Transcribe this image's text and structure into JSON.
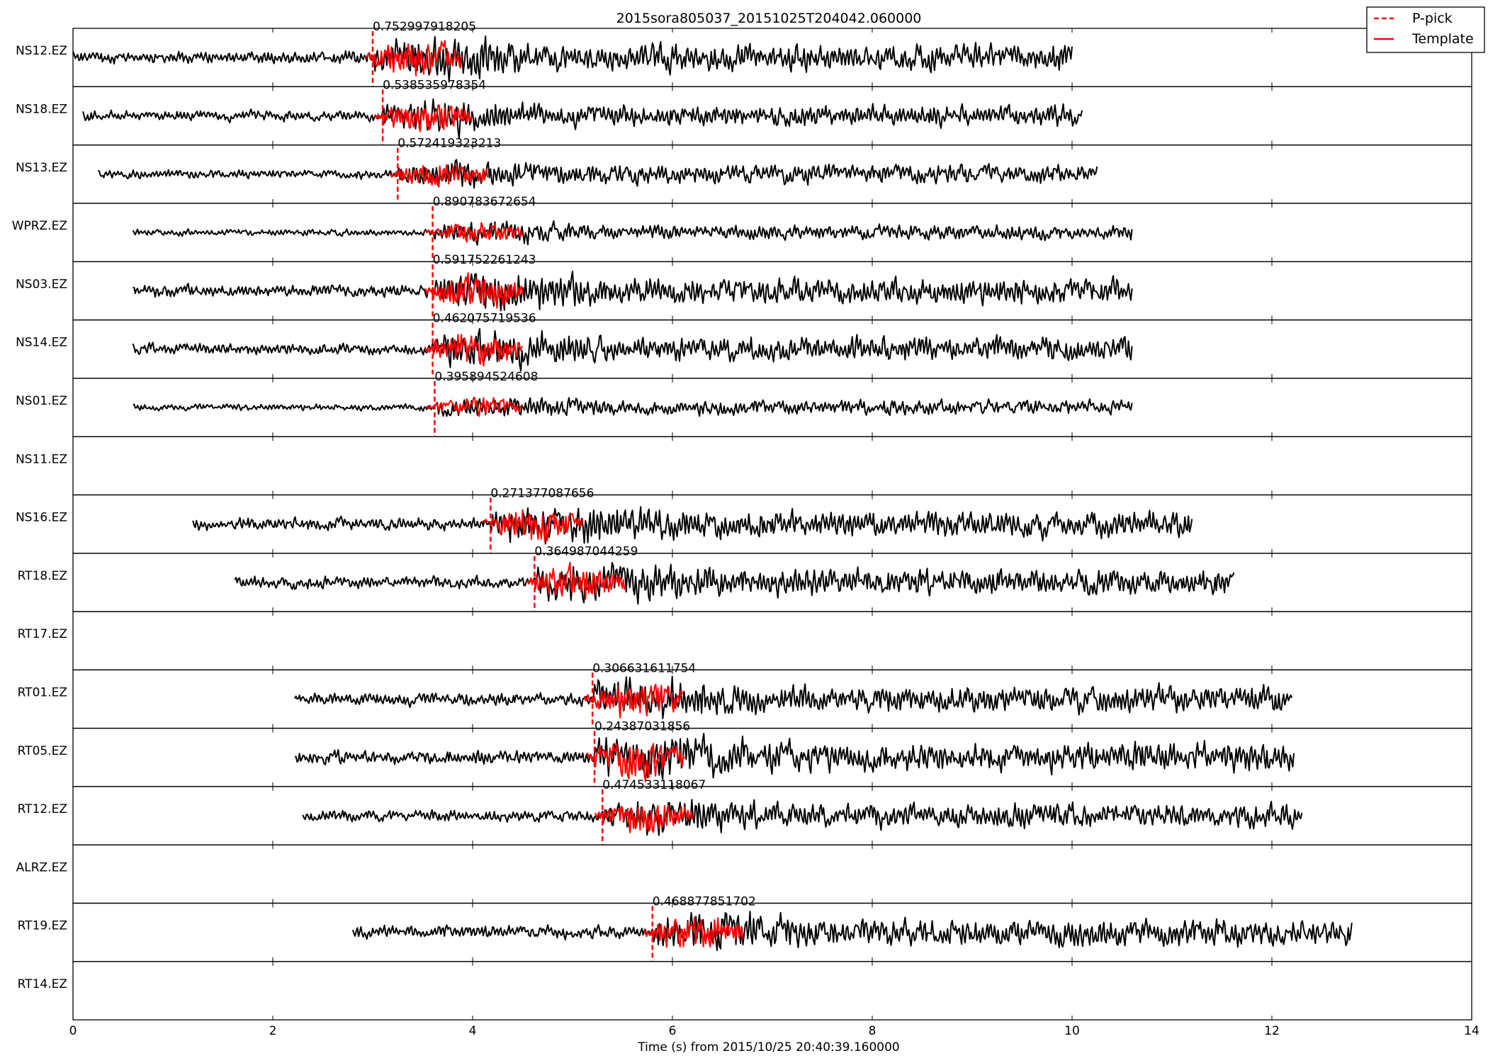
{
  "chart_data": {
    "type": "line",
    "title": "2015sora805037_20151025T204042.060000",
    "xlabel": "Time (s) from 2015/10/25 20:40:39.160000",
    "ylabel": "",
    "xlim": [
      0,
      14
    ],
    "xticks": [
      "0",
      "2",
      "4",
      "6",
      "8",
      "10",
      "12",
      "14"
    ],
    "legend": {
      "position": "top-right",
      "entries": [
        {
          "label": "P-pick",
          "style": "dashed",
          "color": "#ff0000"
        },
        {
          "label": "Template",
          "style": "solid",
          "color": "#ff0000"
        }
      ]
    },
    "colors": {
      "trace": "#000000",
      "template": "#ff0000",
      "pick": "#ff0000"
    },
    "channels": [
      {
        "name": "NS12.EZ",
        "trace_start": 0.0,
        "trace_end": 10.0,
        "pick": 3.0,
        "template_end": 3.9,
        "cc": "0.752997918205",
        "amp": 0.55
      },
      {
        "name": "NS18.EZ",
        "trace_start": 0.1,
        "trace_end": 10.1,
        "pick": 3.1,
        "template_end": 4.0,
        "cc": "0.538535978354",
        "amp": 0.45
      },
      {
        "name": "NS13.EZ",
        "trace_start": 0.25,
        "trace_end": 10.25,
        "pick": 3.25,
        "template_end": 4.15,
        "cc": "0.572419323213",
        "amp": 0.4
      },
      {
        "name": "WPRZ.EZ",
        "trace_start": 0.6,
        "trace_end": 10.6,
        "pick": 3.6,
        "template_end": 4.5,
        "cc": "0.890783672654",
        "amp": 0.3
      },
      {
        "name": "NS03.EZ",
        "trace_start": 0.6,
        "trace_end": 10.6,
        "pick": 3.6,
        "template_end": 4.5,
        "cc": "0.591752261243",
        "amp": 0.55
      },
      {
        "name": "NS14.EZ",
        "trace_start": 0.6,
        "trace_end": 10.6,
        "pick": 3.6,
        "template_end": 4.5,
        "cc": "0.462075719536",
        "amp": 0.5
      },
      {
        "name": "NS01.EZ",
        "trace_start": 0.6,
        "trace_end": 10.6,
        "pick": 3.62,
        "template_end": 4.5,
        "cc": "0.395894524608",
        "amp": 0.3
      },
      {
        "name": "NS11.EZ"
      },
      {
        "name": "NS16.EZ",
        "trace_start": 1.2,
        "trace_end": 11.2,
        "pick": 4.18,
        "template_end": 5.1,
        "cc": "0.271377087656",
        "amp": 0.55
      },
      {
        "name": "RT18.EZ",
        "trace_start": 1.62,
        "trace_end": 11.62,
        "pick": 4.62,
        "template_end": 5.52,
        "cc": "0.364987044259",
        "amp": 0.55
      },
      {
        "name": "RT17.EZ"
      },
      {
        "name": "RT01.EZ",
        "trace_start": 2.22,
        "trace_end": 12.2,
        "pick": 5.2,
        "template_end": 6.1,
        "cc": "0.306631611754",
        "amp": 0.55
      },
      {
        "name": "RT05.EZ",
        "trace_start": 2.22,
        "trace_end": 12.22,
        "pick": 5.22,
        "template_end": 6.12,
        "cc": "0.24387031856",
        "amp": 0.6
      },
      {
        "name": "RT12.EZ",
        "trace_start": 2.3,
        "trace_end": 12.3,
        "pick": 5.3,
        "template_end": 6.2,
        "cc": "0.474533118067",
        "amp": 0.5
      },
      {
        "name": "ALRZ.EZ"
      },
      {
        "name": "RT19.EZ",
        "trace_start": 2.8,
        "trace_end": 12.8,
        "pick": 5.8,
        "template_end": 6.7,
        "cc": "0.468877851702",
        "amp": 0.55
      },
      {
        "name": "RT14.EZ"
      }
    ]
  }
}
